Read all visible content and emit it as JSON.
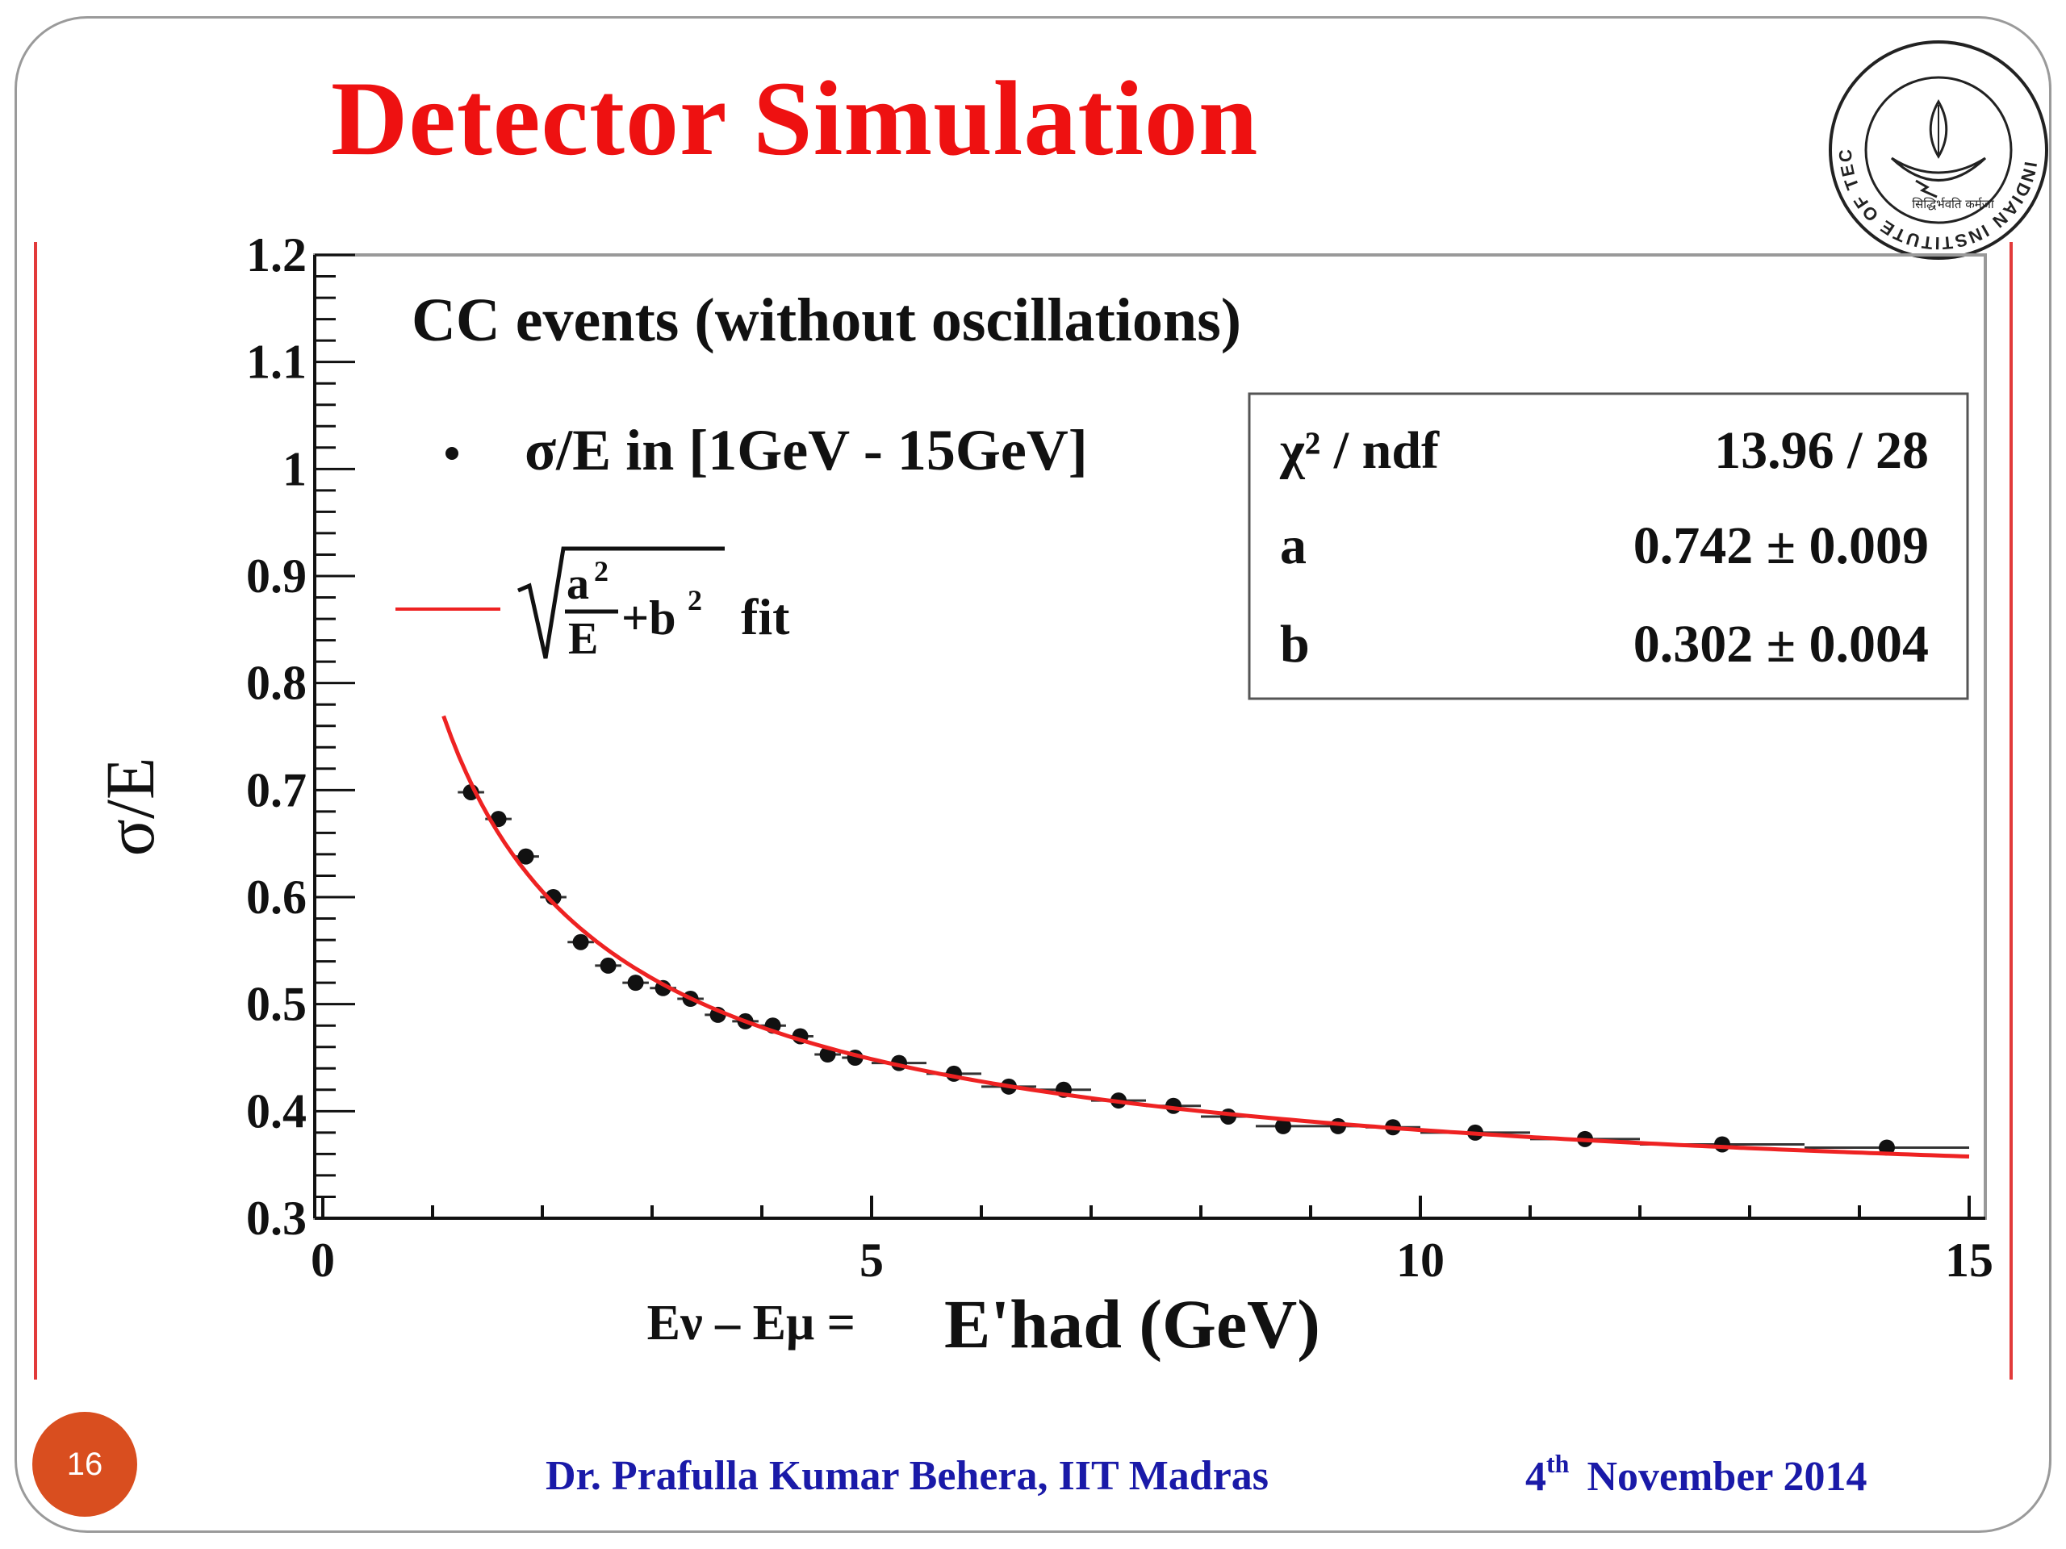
{
  "slide": {
    "title": "Detector Simulation",
    "page_number": "16",
    "author": "Dr. Prafulla Kumar Behera, IIT Madras",
    "date_day": "4",
    "date_suffix": "th",
    "date_rest": "November 2014",
    "title_color": "#ee1111",
    "footer_color": "#1a1aa8",
    "logo": {
      "icon": "iit-madras-seal-icon",
      "ring_text": "INDIAN INSTITUTE OF TECHNOLOGY MADRAS",
      "motto": "सिद्धिर्भवति कर्मजा"
    }
  },
  "chart_data": {
    "type": "scatter",
    "title": "CC events (without oscillations)",
    "xlabel_prefix": "Eν – Eμ =",
    "xlabel_main": "E'had (GeV)",
    "ylabel": "σ/E",
    "xlim": [
      0,
      15
    ],
    "ylim": [
      0.3,
      1.2
    ],
    "x_ticks": [
      "0",
      "5",
      "10",
      "15"
    ],
    "y_ticks": [
      "0.3",
      "0.4",
      "0.5",
      "0.6",
      "0.7",
      "0.8",
      "0.9",
      "1",
      "1.1",
      "1.2"
    ],
    "grid": false,
    "legend": {
      "placement": "top-left",
      "entries": [
        {
          "name": "σ/E in [1GeV - 15GeV]",
          "marker": "dot"
        },
        {
          "name": "√(a²/E + b²) fit",
          "marker": "line",
          "color": "#ee2222"
        }
      ]
    },
    "stats_box": {
      "placement": "top-right",
      "rows": [
        {
          "label": "χ² / ndf",
          "value": "13.96 / 28"
        },
        {
          "label": "a",
          "value": "0.742 ± 0.009"
        },
        {
          "label": "b",
          "value": "0.302 ± 0.004"
        }
      ]
    },
    "fit": {
      "a": 0.742,
      "b": 0.302,
      "x_range": [
        1.1,
        15
      ],
      "color": "#ee2222"
    },
    "series": [
      {
        "name": "σ/E in [1GeV - 15GeV]",
        "points": [
          {
            "x": 1.35,
            "y": 0.698,
            "xerr": 0.12
          },
          {
            "x": 1.6,
            "y": 0.673,
            "xerr": 0.12
          },
          {
            "x": 1.85,
            "y": 0.638,
            "xerr": 0.12
          },
          {
            "x": 2.1,
            "y": 0.6,
            "xerr": 0.12
          },
          {
            "x": 2.35,
            "y": 0.558,
            "xerr": 0.12
          },
          {
            "x": 2.6,
            "y": 0.536,
            "xerr": 0.12
          },
          {
            "x": 2.85,
            "y": 0.52,
            "xerr": 0.12
          },
          {
            "x": 3.1,
            "y": 0.515,
            "xerr": 0.12
          },
          {
            "x": 3.35,
            "y": 0.505,
            "xerr": 0.12
          },
          {
            "x": 3.6,
            "y": 0.49,
            "xerr": 0.12
          },
          {
            "x": 3.85,
            "y": 0.484,
            "xerr": 0.12
          },
          {
            "x": 4.1,
            "y": 0.48,
            "xerr": 0.12
          },
          {
            "x": 4.35,
            "y": 0.47,
            "xerr": 0.12
          },
          {
            "x": 4.6,
            "y": 0.453,
            "xerr": 0.12
          },
          {
            "x": 4.85,
            "y": 0.45,
            "xerr": 0.12
          },
          {
            "x": 5.25,
            "y": 0.445,
            "xerr": 0.25
          },
          {
            "x": 5.75,
            "y": 0.435,
            "xerr": 0.25
          },
          {
            "x": 6.25,
            "y": 0.423,
            "xerr": 0.25
          },
          {
            "x": 6.75,
            "y": 0.42,
            "xerr": 0.25
          },
          {
            "x": 7.25,
            "y": 0.41,
            "xerr": 0.25
          },
          {
            "x": 7.75,
            "y": 0.405,
            "xerr": 0.25
          },
          {
            "x": 8.25,
            "y": 0.395,
            "xerr": 0.25
          },
          {
            "x": 8.75,
            "y": 0.386,
            "xerr": 0.25
          },
          {
            "x": 9.25,
            "y": 0.386,
            "xerr": 0.25
          },
          {
            "x": 9.75,
            "y": 0.385,
            "xerr": 0.25
          },
          {
            "x": 10.5,
            "y": 0.38,
            "xerr": 0.5
          },
          {
            "x": 11.5,
            "y": 0.374,
            "xerr": 0.5
          },
          {
            "x": 12.75,
            "y": 0.369,
            "xerr": 0.75
          },
          {
            "x": 14.25,
            "y": 0.366,
            "xerr": 0.75
          }
        ]
      }
    ]
  }
}
